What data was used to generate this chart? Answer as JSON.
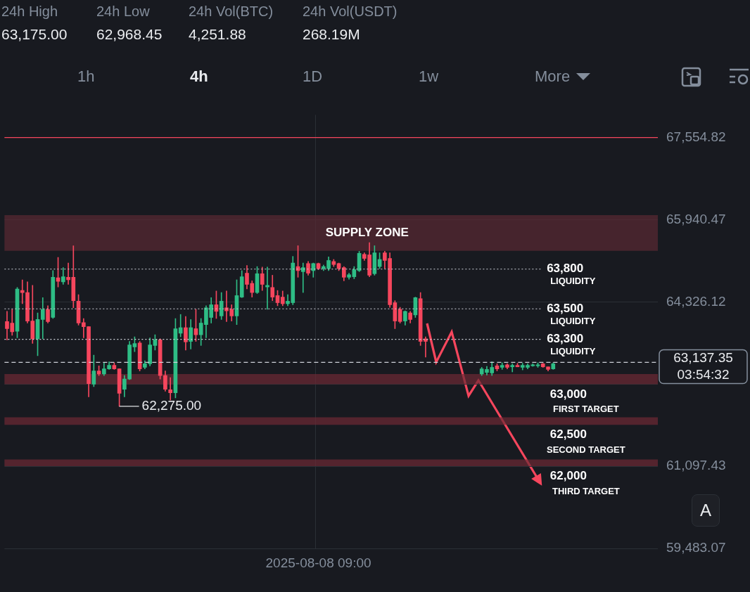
{
  "chart_data": {
    "type": "candlestick",
    "categories": [
      null,
      null,
      null,
      null,
      null,
      null,
      null,
      null,
      null,
      null,
      null,
      null,
      null,
      null,
      null,
      null,
      null,
      null,
      null,
      null,
      null,
      null,
      null,
      null,
      null,
      null,
      null,
      null,
      null,
      null,
      null,
      null,
      null,
      null,
      null,
      null,
      null,
      null,
      null,
      null,
      null,
      null,
      null,
      null,
      null,
      null,
      null,
      null,
      null,
      null,
      null,
      null,
      null,
      null,
      null,
      null,
      null,
      null,
      null,
      null,
      null,
      "2025-08-08 09:00",
      null,
      null,
      null,
      null,
      null,
      null,
      null,
      null,
      null,
      null,
      null,
      null,
      null,
      null,
      null,
      null,
      null,
      null,
      null,
      null,
      null,
      null,
      null,
      null,
      null,
      null,
      null,
      null,
      null,
      null,
      null,
      null,
      null,
      null,
      null,
      null,
      null,
      null,
      null,
      null,
      null,
      null,
      null,
      null,
      null,
      null,
      null,
      null,
      null,
      null,
      null,
      null,
      null,
      null,
      null,
      null,
      null,
      null,
      null,
      null,
      null,
      null,
      null,
      null,
      null,
      null
    ],
    "ohlc": [
      [
        63940,
        64140,
        63580,
        63800
      ],
      [
        63910,
        64180,
        63670,
        63740
      ],
      [
        63750,
        64610,
        63620,
        64580
      ],
      [
        64550,
        64760,
        64290,
        64510
      ],
      [
        64510,
        64720,
        63910,
        63950
      ],
      [
        63950,
        64650,
        63510,
        63600
      ],
      [
        63600,
        64110,
        63270,
        63980
      ],
      [
        63980,
        64410,
        63600,
        64180
      ],
      [
        64180,
        64250,
        63910,
        63940
      ],
      [
        64020,
        64940,
        64000,
        64810
      ],
      [
        64800,
        65200,
        64620,
        64730
      ],
      [
        64720,
        65000,
        64670,
        64820
      ],
      [
        64810,
        65090,
        64670,
        64760
      ],
      [
        64810,
        65430,
        64210,
        64350
      ],
      [
        64340,
        64470,
        63870,
        63910
      ],
      [
        63920,
        64000,
        63620,
        63840
      ],
      [
        63840,
        63840,
        62460,
        62720
      ],
      [
        62710,
        63280,
        62660,
        62970
      ],
      [
        62970,
        63070,
        62880,
        62910
      ],
      [
        62910,
        63130,
        62880,
        63010
      ],
      [
        63010,
        63150,
        63000,
        63080
      ],
      [
        63080,
        63130,
        63000,
        63010
      ],
      [
        63010,
        63010,
        62275,
        62530
      ],
      [
        62610,
        62880,
        62460,
        62810
      ],
      [
        62810,
        63550,
        62800,
        63480
      ],
      [
        63440,
        63640,
        63350,
        63510
      ],
      [
        63520,
        63550,
        62970,
        63010
      ],
      [
        63040,
        63170,
        63010,
        63110
      ],
      [
        63110,
        63620,
        63070,
        63480
      ],
      [
        63470,
        63680,
        63380,
        63580
      ],
      [
        63580,
        63600,
        62810,
        62880
      ],
      [
        62880,
        62970,
        62570,
        62610
      ],
      [
        62600,
        62840,
        62400,
        62540
      ],
      [
        62540,
        64000,
        62440,
        63800
      ],
      [
        63710,
        64080,
        63640,
        63820
      ],
      [
        63820,
        64040,
        63380,
        63540
      ],
      [
        63550,
        63980,
        63400,
        63820
      ],
      [
        63800,
        64180,
        63550,
        63680
      ],
      [
        63680,
        64000,
        63470,
        63910
      ],
      [
        63880,
        64250,
        63620,
        64210
      ],
      [
        64020,
        64410,
        63910,
        64270
      ],
      [
        64270,
        64540,
        64000,
        64140
      ],
      [
        64050,
        64510,
        63980,
        64340
      ],
      [
        64210,
        64540,
        63940,
        64150
      ],
      [
        64180,
        64270,
        63950,
        64050
      ],
      [
        64050,
        64760,
        63880,
        64450
      ],
      [
        64420,
        64940,
        64410,
        64820
      ],
      [
        64890,
        65040,
        64580,
        64670
      ],
      [
        64690,
        64740,
        64420,
        64510
      ],
      [
        64510,
        65020,
        64490,
        64880
      ],
      [
        64880,
        65010,
        64550,
        64670
      ],
      [
        64620,
        65010,
        64180,
        64650
      ],
      [
        64610,
        64850,
        64350,
        64420
      ],
      [
        64450,
        64550,
        64250,
        64310
      ],
      [
        64420,
        64540,
        64250,
        64290
      ],
      [
        64290,
        64470,
        64250,
        64340
      ],
      [
        64310,
        65220,
        64270,
        65090
      ],
      [
        65020,
        65430,
        64810,
        64940
      ],
      [
        64920,
        65090,
        64510,
        65000
      ],
      [
        65080,
        65120,
        64850,
        64890
      ],
      [
        64940,
        65090,
        64810,
        65080
      ],
      [
        65080,
        65090,
        64960,
        64980
      ],
      [
        64980,
        65050,
        64940,
        65020
      ],
      [
        64980,
        65210,
        64940,
        65140
      ],
      [
        65120,
        65160,
        65020,
        65060
      ],
      [
        65080,
        65090,
        64940,
        64980
      ],
      [
        65000,
        65020,
        64740,
        64810
      ],
      [
        64810,
        64890,
        64770,
        64860
      ],
      [
        64820,
        65020,
        64780,
        64960
      ],
      [
        64940,
        65320,
        64920,
        65280
      ],
      [
        65260,
        65290,
        65140,
        65180
      ],
      [
        65250,
        65490,
        64820,
        64850
      ],
      [
        64880,
        65430,
        64850,
        65290
      ],
      [
        65020,
        65290,
        64980,
        65160
      ],
      [
        65290,
        65320,
        64980,
        65140
      ],
      [
        65180,
        65290,
        64220,
        64270
      ],
      [
        64310,
        64350,
        63800,
        63950
      ],
      [
        64180,
        64220,
        63910,
        63940
      ],
      [
        63950,
        64150,
        63870,
        64140
      ],
      [
        64110,
        64140,
        63910,
        63980
      ],
      [
        64070,
        64420,
        64020,
        64410
      ],
      [
        64390,
        64510,
        63470,
        63550
      ],
      [
        63600,
        63640,
        63240,
        63550
      ],
      null,
      null,
      null,
      null,
      null,
      null,
      null,
      null,
      null,
      null,
      [
        62910,
        63040,
        62880,
        63010
      ],
      [
        62940,
        63060,
        62890,
        63000
      ],
      [
        62930,
        63150,
        62880,
        63040
      ],
      [
        63070,
        63110,
        62970,
        63010
      ],
      [
        63040,
        63130,
        63000,
        63080
      ],
      [
        63090,
        63110,
        63010,
        63040
      ],
      [
        63050,
        63110,
        62950,
        63080
      ],
      [
        63080,
        63120,
        63050,
        63050
      ],
      [
        63040,
        63120,
        62990,
        63080
      ],
      [
        63040,
        63110,
        63010,
        63080
      ],
      [
        63070,
        63110,
        63060,
        63090
      ],
      [
        63070,
        63130,
        63040,
        63090
      ],
      [
        63110,
        63120,
        63040,
        63050
      ],
      [
        63050,
        63050,
        62970,
        63000
      ],
      [
        63010,
        63130,
        63000,
        63110
      ],
      null,
      null,
      null,
      null,
      null,
      null,
      null,
      null,
      null,
      null,
      null,
      null,
      null,
      null,
      null,
      null,
      null,
      null,
      null,
      null
    ],
    "colors": [
      "#f6465d",
      "#f6465d",
      "#2ebd85",
      "#f6465d",
      "#f6465d",
      "#f6465d",
      "#2ebd85",
      "#2ebd85",
      "#f6465d",
      "#2ebd85",
      "#f6465d",
      "#2ebd85",
      "#f6465d",
      "#f6465d",
      "#f6465d",
      "#f6465d",
      "#f6465d",
      "#2ebd85",
      "#f6465d",
      "#2ebd85",
      "#2ebd85",
      "#f6465d",
      "#f6465d",
      "#2ebd85",
      "#2ebd85",
      "#2ebd85",
      "#f6465d",
      "#2ebd85",
      "#2ebd85",
      "#2ebd85",
      "#f6465d",
      "#f6465d",
      "#f6465d",
      "#2ebd85",
      "#2ebd85",
      "#f6465d",
      "#2ebd85",
      "#f6465d",
      "#2ebd85",
      "#2ebd85",
      "#2ebd85",
      "#f6465d",
      "#2ebd85",
      "#f6465d",
      "#f6465d",
      "#2ebd85",
      "#2ebd85",
      "#f6465d",
      "#f6465d",
      "#2ebd85",
      "#f6465d",
      "#2ebd85",
      "#f6465d",
      "#f6465d",
      "#f6465d",
      "#2ebd85",
      "#2ebd85",
      "#f6465d",
      "#2ebd85",
      "#f6465d",
      "#2ebd85",
      "#f6465d",
      "#2ebd85",
      "#2ebd85",
      "#f6465d",
      "#f6465d",
      "#f6465d",
      "#2ebd85",
      "#2ebd85",
      "#2ebd85",
      "#f6465d",
      "#f6465d",
      "#2ebd85",
      "#2ebd85",
      "#f6465d",
      "#f6465d",
      "#f6465d",
      "#f6465d",
      "#2ebd85",
      "#f6465d",
      "#2ebd85",
      "#f6465d",
      "#f6465d",
      null,
      null,
      null,
      null,
      null,
      null,
      null,
      null,
      null,
      null,
      "#2ebd85",
      "#2ebd85",
      "#2ebd85",
      "#f6465d",
      "#2ebd85",
      "#f6465d",
      "#2ebd85",
      "#f6465d",
      "#2ebd85",
      "#2ebd85",
      "#2ebd85",
      "#2ebd85",
      "#f6465d",
      "#f6465d",
      "#2ebd85",
      null,
      null,
      null,
      null,
      null,
      null,
      null,
      null,
      null,
      null,
      null,
      null,
      null,
      null,
      null,
      null,
      null,
      null,
      null,
      null
    ],
    "ylim": [
      59483.07,
      68000
    ],
    "yticks": [
      {
        "value": 59483.07,
        "label": "59,483.07"
      },
      {
        "value": 61097.43,
        "label": "61,097.43"
      },
      {
        "value": 62711.78,
        "label": null
      },
      {
        "value": 64326.12,
        "label": "64,326.12"
      },
      {
        "value": 65940.47,
        "label": "65,940.47"
      },
      {
        "value": 67554.82,
        "label": "67,554.82"
      }
    ],
    "grid": true,
    "bands": [
      {
        "axis": "y",
        "from": 65330,
        "to": 66030,
        "label": "SUPPLY ZONE",
        "color": "#5a2a33"
      },
      {
        "axis": "y",
        "from": 62710,
        "to": 62910,
        "label": "63,000\nFIRST TARGET",
        "color": "#6e2a35"
      },
      {
        "axis": "y",
        "from": 61910,
        "to": 62060,
        "label": "62,500\nSECOND TARGET",
        "color": "#6e2a35"
      },
      {
        "axis": "y",
        "from": 61100,
        "to": 61230,
        "label": "62,000\nTHIRD TARGET",
        "color": "#6e2a35"
      }
    ],
    "ref_lines": [
      {
        "axis": "y",
        "value": 67554.82,
        "color": "#f6465d",
        "line_style": "solid"
      },
      {
        "axis": "y",
        "value": 64970,
        "label": "63,800\nLIQUIDITY",
        "color": "#cfd3da",
        "line_style": "dotted"
      },
      {
        "axis": "y",
        "value": 64190,
        "label": "63,500\nLIQUIDITY",
        "color": "#cfd3da",
        "line_style": "dotted"
      },
      {
        "axis": "y",
        "value": 63590,
        "label": "63,300\nLIQUIDITY",
        "color": "#cfd3da",
        "line_style": "dotted"
      },
      {
        "axis": "y",
        "value": 63137.35,
        "label": "63,137.35\n03:54:32",
        "color": "#cfd3da",
        "line_style": "dashed"
      }
    ],
    "annotations": [
      "24h High",
      "24h Low",
      "24h Vol(BTC)",
      "24h Vol(USDT)",
      "63,175.00",
      "62,968.45",
      "4,251.88",
      "268.19M",
      "1h",
      "4h",
      "1D",
      "1w",
      "More",
      "A",
      "62,275.00"
    ]
  }
}
